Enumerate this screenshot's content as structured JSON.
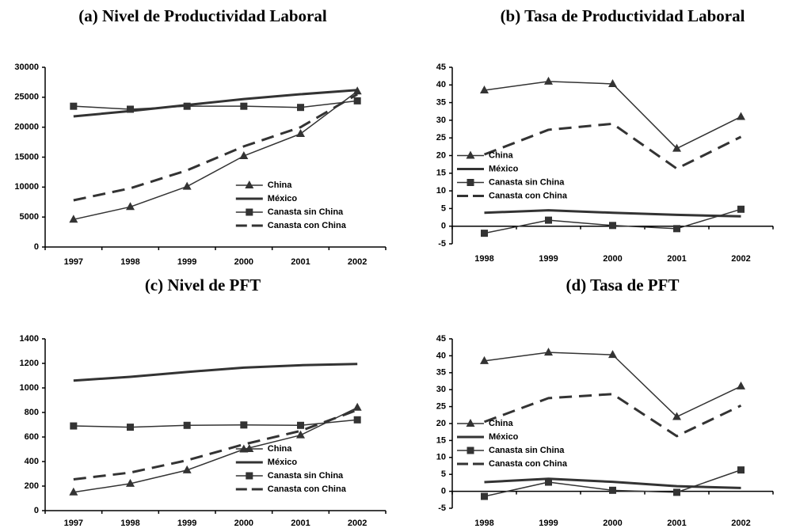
{
  "chart_data": [
    {
      "type": "line",
      "title": "(a) Nivel de Productividad Laboral",
      "categories": [
        "1997",
        "1998",
        "1999",
        "2000",
        "2001",
        "2002"
      ],
      "ylim": [
        0,
        30000
      ],
      "yticks": [
        0,
        5000,
        10000,
        15000,
        20000,
        25000,
        30000
      ],
      "legend": "lower right",
      "series": [
        {
          "name": "China",
          "color": "#333333",
          "marker": "triangle",
          "dash": false,
          "width": 1.5,
          "values": [
            4600,
            6700,
            10100,
            15200,
            18900,
            26000
          ]
        },
        {
          "name": "México",
          "color": "#333333",
          "marker": "none",
          "dash": false,
          "width": 3,
          "values": [
            21800,
            22700,
            23700,
            24700,
            25500,
            26200
          ]
        },
        {
          "name": "Canasta sin China",
          "color": "#333333",
          "marker": "square",
          "dash": false,
          "width": 1.5,
          "values": [
            23500,
            23000,
            23500,
            23500,
            23300,
            24400
          ]
        },
        {
          "name": "Canasta con China",
          "color": "#333333",
          "marker": "none",
          "dash": true,
          "width": 3,
          "values": [
            7800,
            9800,
            12800,
            16800,
            20000,
            25500
          ]
        }
      ]
    },
    {
      "type": "line",
      "title": "(b) Tasa de Productividad Laboral",
      "categories": [
        "1998",
        "1999",
        "2000",
        "2001",
        "2002"
      ],
      "ylim": [
        -5,
        45
      ],
      "yticks": [
        -5,
        0,
        5,
        10,
        15,
        20,
        25,
        30,
        35,
        40,
        45
      ],
      "legend": "center left",
      "series": [
        {
          "name": "China",
          "color": "#333333",
          "marker": "triangle",
          "dash": false,
          "width": 1.5,
          "values": [
            38.5,
            41,
            40.3,
            22,
            31
          ]
        },
        {
          "name": "México",
          "color": "#333333",
          "marker": "none",
          "dash": false,
          "width": 3,
          "values": [
            3.8,
            4.5,
            3.8,
            3.2,
            2.8
          ]
        },
        {
          "name": "Canasta sin China",
          "color": "#333333",
          "marker": "square",
          "dash": false,
          "width": 1.5,
          "values": [
            -2,
            1.7,
            0.2,
            -0.7,
            4.8
          ]
        },
        {
          "name": "Canasta con China",
          "color": "#333333",
          "marker": "none",
          "dash": true,
          "width": 3,
          "values": [
            20.3,
            27.3,
            29,
            16.3,
            25.3
          ]
        }
      ]
    },
    {
      "type": "line",
      "title": "(c) Nivel de PFT",
      "categories": [
        "1997",
        "1998",
        "1999",
        "2000",
        "2001",
        "2002"
      ],
      "ylim": [
        0,
        1400
      ],
      "yticks": [
        0,
        200,
        400,
        600,
        800,
        1000,
        1200,
        1400
      ],
      "legend": "lower right",
      "series": [
        {
          "name": "China",
          "color": "#333333",
          "marker": "triangle",
          "dash": false,
          "width": 1.5,
          "values": [
            150,
            220,
            330,
            500,
            615,
            840
          ]
        },
        {
          "name": "México",
          "color": "#333333",
          "marker": "none",
          "dash": false,
          "width": 3,
          "values": [
            1060,
            1090,
            1130,
            1165,
            1185,
            1195
          ]
        },
        {
          "name": "Canasta sin China",
          "color": "#333333",
          "marker": "square",
          "dash": false,
          "width": 1.5,
          "values": [
            690,
            680,
            695,
            698,
            695,
            740
          ]
        },
        {
          "name": "Canasta con China",
          "color": "#333333",
          "marker": "none",
          "dash": true,
          "width": 3,
          "values": [
            255,
            310,
            410,
            540,
            650,
            820
          ]
        }
      ]
    },
    {
      "type": "line",
      "title": "(d) Tasa de PFT",
      "categories": [
        "1998",
        "1999",
        "2000",
        "2001",
        "2002"
      ],
      "ylim": [
        -5,
        45
      ],
      "yticks": [
        -5,
        0,
        5,
        10,
        15,
        20,
        25,
        30,
        35,
        40,
        45
      ],
      "legend": "center left",
      "series": [
        {
          "name": "China",
          "color": "#333333",
          "marker": "triangle",
          "dash": false,
          "width": 1.5,
          "values": [
            38.5,
            41,
            40.3,
            22,
            31
          ]
        },
        {
          "name": "México",
          "color": "#333333",
          "marker": "none",
          "dash": false,
          "width": 3,
          "values": [
            2.7,
            3.7,
            2.8,
            1.5,
            1.0
          ]
        },
        {
          "name": "Canasta sin China",
          "color": "#333333",
          "marker": "square",
          "dash": false,
          "width": 1.5,
          "values": [
            -1.5,
            2.7,
            0.3,
            -0.3,
            6.3
          ]
        },
        {
          "name": "Canasta con China",
          "color": "#333333",
          "marker": "none",
          "dash": true,
          "width": 3,
          "values": [
            20.5,
            27.5,
            28.7,
            16.3,
            25.3
          ]
        }
      ]
    }
  ]
}
